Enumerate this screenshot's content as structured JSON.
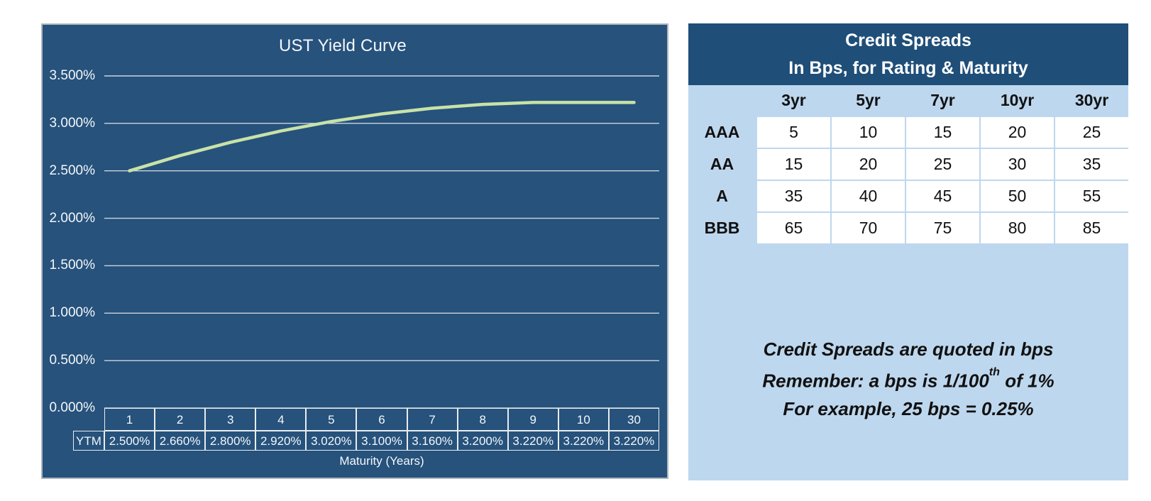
{
  "chart_data": [
    {
      "type": "line",
      "title": "UST Yield Curve",
      "xlabel": "Maturity (Years)",
      "ylabel": "",
      "categories": [
        "1",
        "2",
        "3",
        "4",
        "5",
        "6",
        "7",
        "8",
        "9",
        "10",
        "30"
      ],
      "series": [
        {
          "name": "YTM",
          "values": [
            2.5,
            2.66,
            2.8,
            2.92,
            3.02,
            3.1,
            3.16,
            3.2,
            3.22,
            3.22,
            3.22
          ]
        }
      ],
      "ylim": [
        0,
        3.5
      ],
      "y_tick_labels": [
        "3.500%",
        "3.000%",
        "2.500%",
        "2.000%",
        "1.500%",
        "1.000%",
        "0.500%",
        "0.000%"
      ],
      "grid": true,
      "legend": false,
      "line_color": "#C8E2A8"
    },
    {
      "type": "table",
      "title": "Credit Spreads In Bps, for Rating & Maturity",
      "columns": [
        "3yr",
        "5yr",
        "7yr",
        "10yr",
        "30yr"
      ],
      "rows": [
        {
          "rating": "AAA",
          "values": [
            5,
            10,
            15,
            20,
            25
          ]
        },
        {
          "rating": "AA",
          "values": [
            15,
            20,
            25,
            30,
            35
          ]
        },
        {
          "rating": "A",
          "values": [
            35,
            40,
            45,
            50,
            55
          ]
        },
        {
          "rating": "BBB",
          "values": [
            65,
            70,
            75,
            80,
            85
          ]
        }
      ]
    }
  ],
  "left_panel": {
    "title": "UST Yield Curve",
    "y_axis_labels": [
      "3.500%",
      "3.000%",
      "2.500%",
      "2.000%",
      "1.500%",
      "1.000%",
      "0.500%",
      "0.000%"
    ],
    "x_axis_title": "Maturity (Years)",
    "table": {
      "row_label": "YTM",
      "maturities": [
        "1",
        "2",
        "3",
        "4",
        "5",
        "6",
        "7",
        "8",
        "9",
        "10",
        "30"
      ],
      "ytm_values": [
        "2.500%",
        "2.660%",
        "2.800%",
        "2.920%",
        "3.020%",
        "3.100%",
        "3.160%",
        "3.200%",
        "3.220%",
        "3.220%",
        "3.220%"
      ]
    }
  },
  "right_panel": {
    "header_line1": "Credit Spreads",
    "header_line2": "In Bps, for Rating & Maturity",
    "columns": [
      "3yr",
      "5yr",
      "7yr",
      "10yr",
      "30yr"
    ],
    "rows": [
      {
        "rating": "AAA",
        "values": [
          "5",
          "10",
          "15",
          "20",
          "25"
        ]
      },
      {
        "rating": "AA",
        "values": [
          "15",
          "20",
          "25",
          "30",
          "35"
        ]
      },
      {
        "rating": "A",
        "values": [
          "35",
          "40",
          "45",
          "50",
          "55"
        ]
      },
      {
        "rating": "BBB",
        "values": [
          "65",
          "70",
          "75",
          "80",
          "85"
        ]
      }
    ],
    "note_line1": "Credit Spreads are quoted in bps",
    "note_line2_pre": "Remember: a bps is 1/100",
    "note_line2_sup": "th",
    "note_line2_post": " of 1%",
    "note_line3": "For example, 25 bps = 0.25%"
  },
  "colors": {
    "panel_blue": "#26527C",
    "header_blue": "#1F4E78",
    "light_blue": "#BDD7EE",
    "curve_green": "#C8E2A8",
    "gridline": "#CDD4DC",
    "table_border": "#E9ECEF",
    "text_white": "#F5F7FA",
    "text_dark": "#111111"
  }
}
